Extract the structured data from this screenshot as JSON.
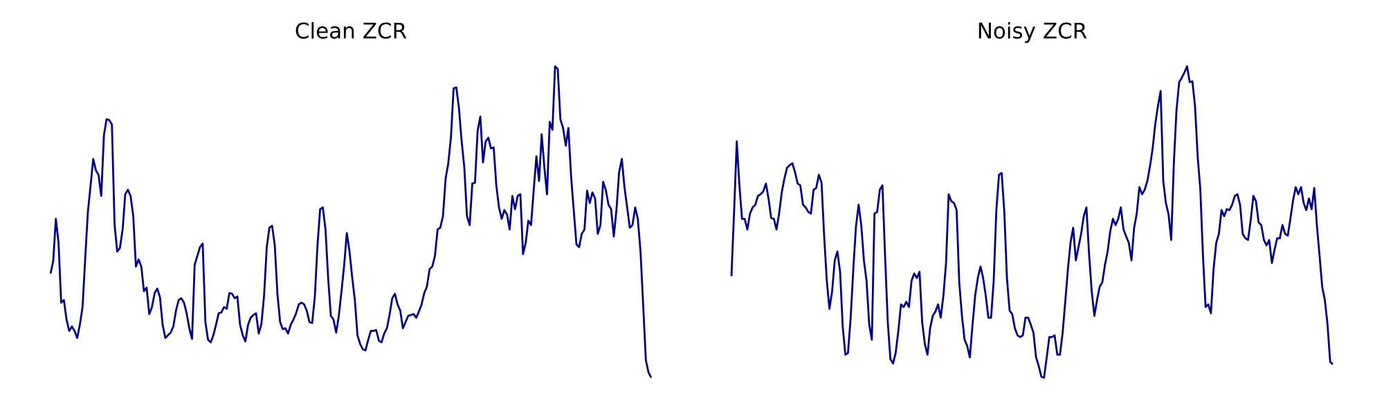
{
  "chart_data": [
    {
      "type": "line",
      "title": "Clean ZCR",
      "color": "#00008b",
      "ylim": [
        0,
        400
      ],
      "values": [
        140,
        154,
        202,
        175,
        107,
        110,
        88,
        75,
        80,
        75,
        67,
        82,
        102,
        158,
        210,
        240,
        270,
        257,
        252,
        228,
        297,
        315,
        314,
        309,
        195,
        165,
        169,
        190,
        230,
        235,
        228,
        205,
        148,
        156,
        148,
        120,
        124,
        94,
        102,
        118,
        123,
        113,
        82,
        67,
        70,
        73,
        80,
        98,
        110,
        112,
        107,
        95,
        78,
        66,
        150,
        160,
        170,
        174,
        85,
        65,
        62,
        70,
        82,
        95,
        96,
        102,
        100,
        118,
        117,
        112,
        114,
        82,
        70,
        63,
        82,
        90,
        93,
        95,
        72,
        83,
        115,
        170,
        192,
        194,
        172,
        117,
        85,
        77,
        78,
        72,
        82,
        88,
        95,
        105,
        107,
        105,
        98,
        85,
        84,
        113,
        172,
        213,
        215,
        190,
        135,
        92,
        88,
        73,
        92,
        120,
        150,
        186,
        165,
        136,
        110,
        70,
        60,
        54,
        53,
        65,
        75,
        75,
        76,
        64,
        62,
        72,
        78,
        93,
        112,
        117,
        105,
        98,
        78,
        85,
        92,
        93,
        94,
        90,
        97,
        105,
        118,
        125,
        145,
        148,
        160,
        190,
        192,
        205,
        248,
        265,
        295,
        350,
        351,
        328,
        290,
        260,
        205,
        195,
        242,
        243,
        302,
        318,
        266,
        290,
        294,
        282,
        283,
        240,
        215,
        202,
        212,
        207,
        190,
        228,
        213,
        228,
        230,
        162,
        175,
        200,
        195,
        235,
        273,
        245,
        298,
        260,
        230,
        312,
        303,
        375,
        372,
        315,
        305,
        285,
        305,
        250,
        212,
        173,
        170,
        185,
        190,
        234,
        220,
        232,
        225,
        185,
        195,
        244,
        235,
        218,
        213,
        182,
        212,
        255,
        270,
        238,
        215,
        192,
        195,
        215,
        202,
        165,
        105,
        42,
        28,
        22
      ]
    },
    {
      "type": "line",
      "title": "Noisy ZCR",
      "color": "#00008b",
      "ylim": [
        0,
        400
      ],
      "values": [
        137,
        210,
        290,
        240,
        202,
        202,
        190,
        208,
        215,
        218,
        228,
        230,
        233,
        242,
        225,
        203,
        202,
        190,
        208,
        232,
        248,
        260,
        263,
        265,
        255,
        242,
        240,
        218,
        215,
        210,
        208,
        235,
        237,
        252,
        243,
        182,
        132,
        100,
        120,
        155,
        165,
        142,
        80,
        48,
        50,
        90,
        145,
        193,
        218,
        195,
        155,
        132,
        82,
        65,
        208,
        210,
        235,
        240,
        160,
        85,
        43,
        38,
        50,
        75,
        105,
        102,
        108,
        102,
        132,
        140,
        135,
        142,
        85,
        60,
        48,
        78,
        92,
        97,
        105,
        90,
        115,
        152,
        230,
        222,
        220,
        212,
        130,
        92,
        65,
        58,
        45,
        82,
        115,
        135,
        148,
        135,
        115,
        90,
        90,
        132,
        212,
        252,
        254,
        210,
        135,
        98,
        94,
        78,
        70,
        68,
        70,
        90,
        90,
        82,
        73,
        45,
        35,
        23,
        22,
        45,
        68,
        68,
        70,
        48,
        48,
        72,
        108,
        145,
        175,
        192,
        155,
        170,
        185,
        205,
        215,
        162,
        120,
        92,
        110,
        125,
        130,
        150,
        165,
        188,
        202,
        195,
        202,
        215,
        190,
        182,
        175,
        155,
        192,
        208,
        238,
        230,
        235,
        245,
        262,
        282,
        310,
        330,
        347,
        245,
        220,
        207,
        178,
        265,
        325,
        357,
        362,
        368,
        375,
        357,
        358,
        330,
        272,
        235,
        160,
        102,
        105,
        95,
        145,
        175,
        185,
        212,
        205,
        213,
        212,
        218,
        228,
        230,
        218,
        185,
        180,
        178,
        200,
        228,
        222,
        198,
        195,
        178,
        172,
        178,
        152,
        167,
        180,
        180,
        195,
        185,
        183,
        202,
        223,
        238,
        230,
        238,
        220,
        212,
        225,
        213,
        237,
        195,
        160,
        125,
        110,
        83,
        40,
        37
      ]
    }
  ]
}
